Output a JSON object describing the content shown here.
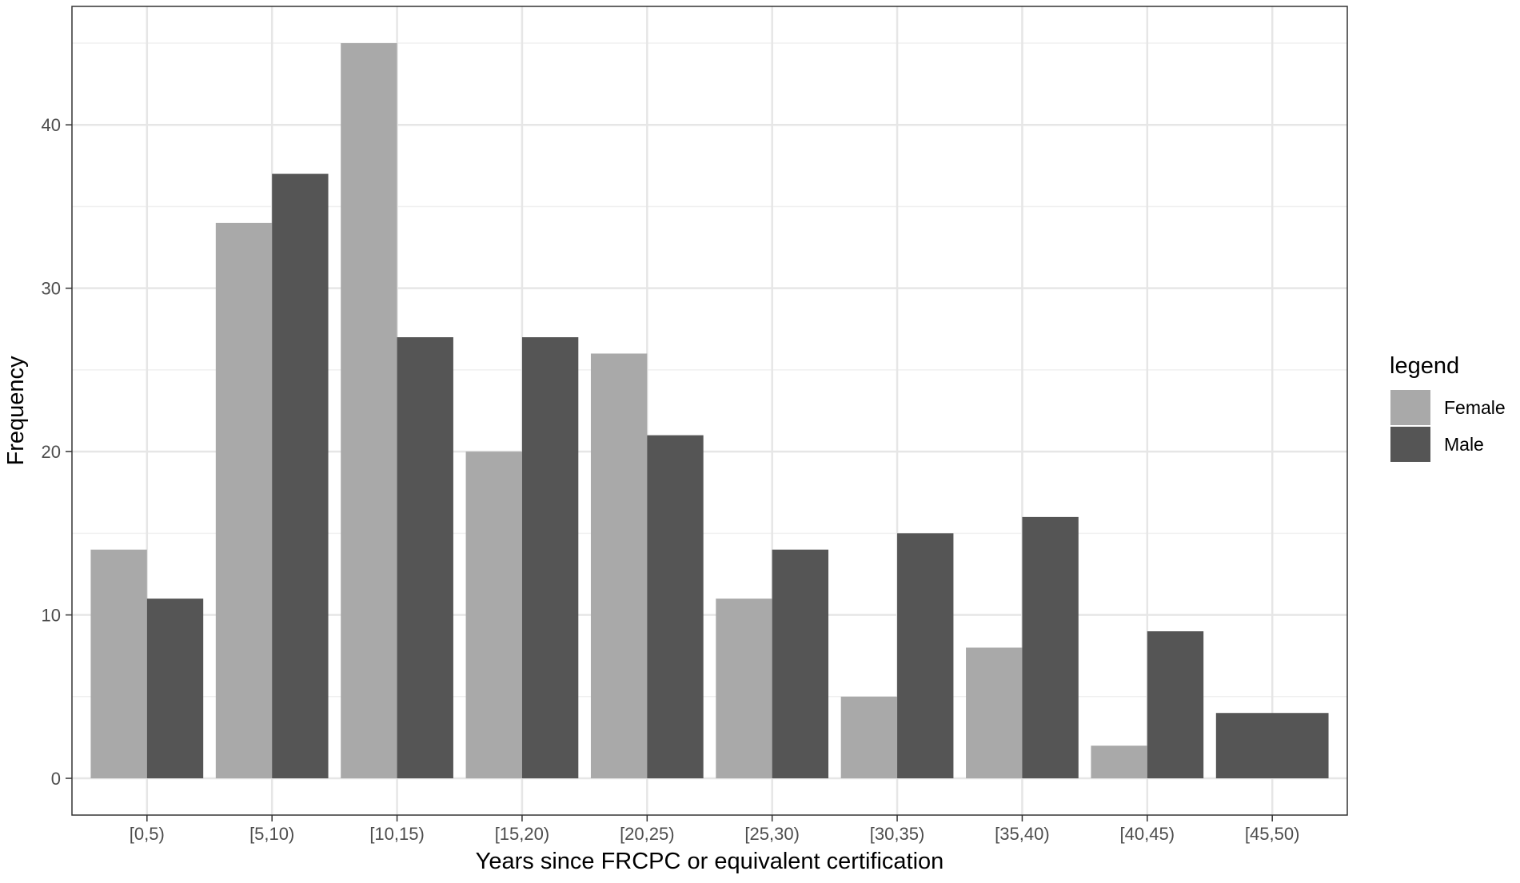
{
  "chart_data": {
    "type": "bar",
    "title": "",
    "xlabel": "Years since FRCPC or equivalent certification",
    "ylabel": "Frequency",
    "categories": [
      "[0,5)",
      "[5,10)",
      "[10,15)",
      "[15,20)",
      "[20,25)",
      "[25,30)",
      "[30,35)",
      "[35,40)",
      "[40,45)",
      "[45,50)"
    ],
    "series": [
      {
        "name": "Female",
        "color": "#a9a9a9",
        "values": [
          14,
          34,
          45,
          20,
          26,
          11,
          5,
          8,
          2,
          null
        ]
      },
      {
        "name": "Male",
        "color": "#555555",
        "values": [
          11,
          37,
          27,
          27,
          21,
          14,
          15,
          16,
          9,
          4
        ]
      }
    ],
    "ylim": [
      -2.25,
      47.25
    ],
    "yticks": [
      0,
      10,
      20,
      30,
      40
    ],
    "ytick_labels": [
      "0",
      "10",
      "20",
      "30",
      "40"
    ],
    "grid": true,
    "legend": {
      "title": "legend",
      "position": "right"
    },
    "theme": "bw"
  }
}
